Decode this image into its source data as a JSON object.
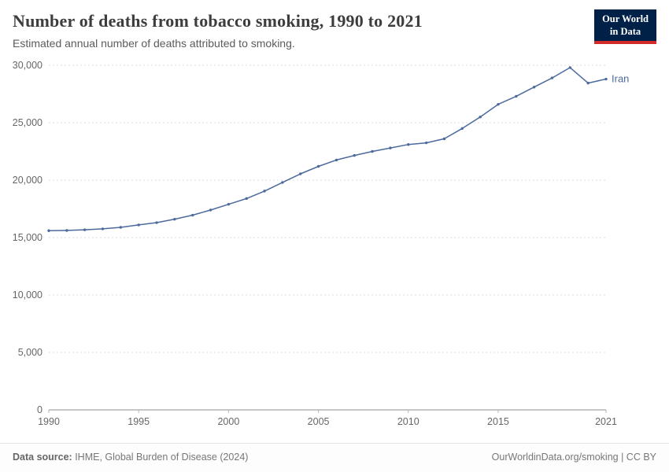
{
  "header": {
    "title": "Number of deaths from tobacco smoking, 1990 to 2021",
    "subtitle": "Estimated annual number of deaths attributed to smoking.",
    "logo": {
      "line1": "Our World",
      "line2": "in Data",
      "bg_color": "#002147",
      "accent_color": "#d42b2b"
    }
  },
  "chart_data": {
    "type": "line",
    "title": "Number of deaths from tobacco smoking, 1990 to 2021",
    "xlabel": "",
    "ylabel": "",
    "xlim": [
      1990,
      2021
    ],
    "ylim": [
      0,
      30000
    ],
    "grid": "horizontal-dashed",
    "legend_position": "end-of-line-label",
    "x_ticks": [
      1990,
      1995,
      2000,
      2005,
      2010,
      2015,
      2021
    ],
    "y_ticks": [
      0,
      5000,
      10000,
      15000,
      20000,
      25000,
      30000
    ],
    "y_tick_labels": [
      "0",
      "5,000",
      "10,000",
      "15,000",
      "20,000",
      "25,000",
      "30,000"
    ],
    "series": [
      {
        "name": "Iran",
        "color": "#4C6A9C",
        "x": [
          1990,
          1991,
          1992,
          1993,
          1994,
          1995,
          1996,
          1997,
          1998,
          1999,
          2000,
          2001,
          2002,
          2003,
          2004,
          2005,
          2006,
          2007,
          2008,
          2009,
          2010,
          2011,
          2012,
          2013,
          2014,
          2015,
          2016,
          2017,
          2018,
          2019,
          2020,
          2021
        ],
        "values": [
          15600,
          15620,
          15680,
          15760,
          15890,
          16100,
          16300,
          16600,
          16950,
          17400,
          17900,
          18400,
          19050,
          19800,
          20550,
          21200,
          21750,
          22150,
          22500,
          22800,
          23100,
          23250,
          23600,
          24500,
          25500,
          26600,
          27300,
          28100,
          28900,
          29800,
          28450,
          28800
        ]
      }
    ]
  },
  "footer": {
    "source_label": "Data source:",
    "source_text": " IHME, Global Burden of Disease (2024)",
    "right_text": "OurWorldinData.org/smoking | CC BY"
  }
}
